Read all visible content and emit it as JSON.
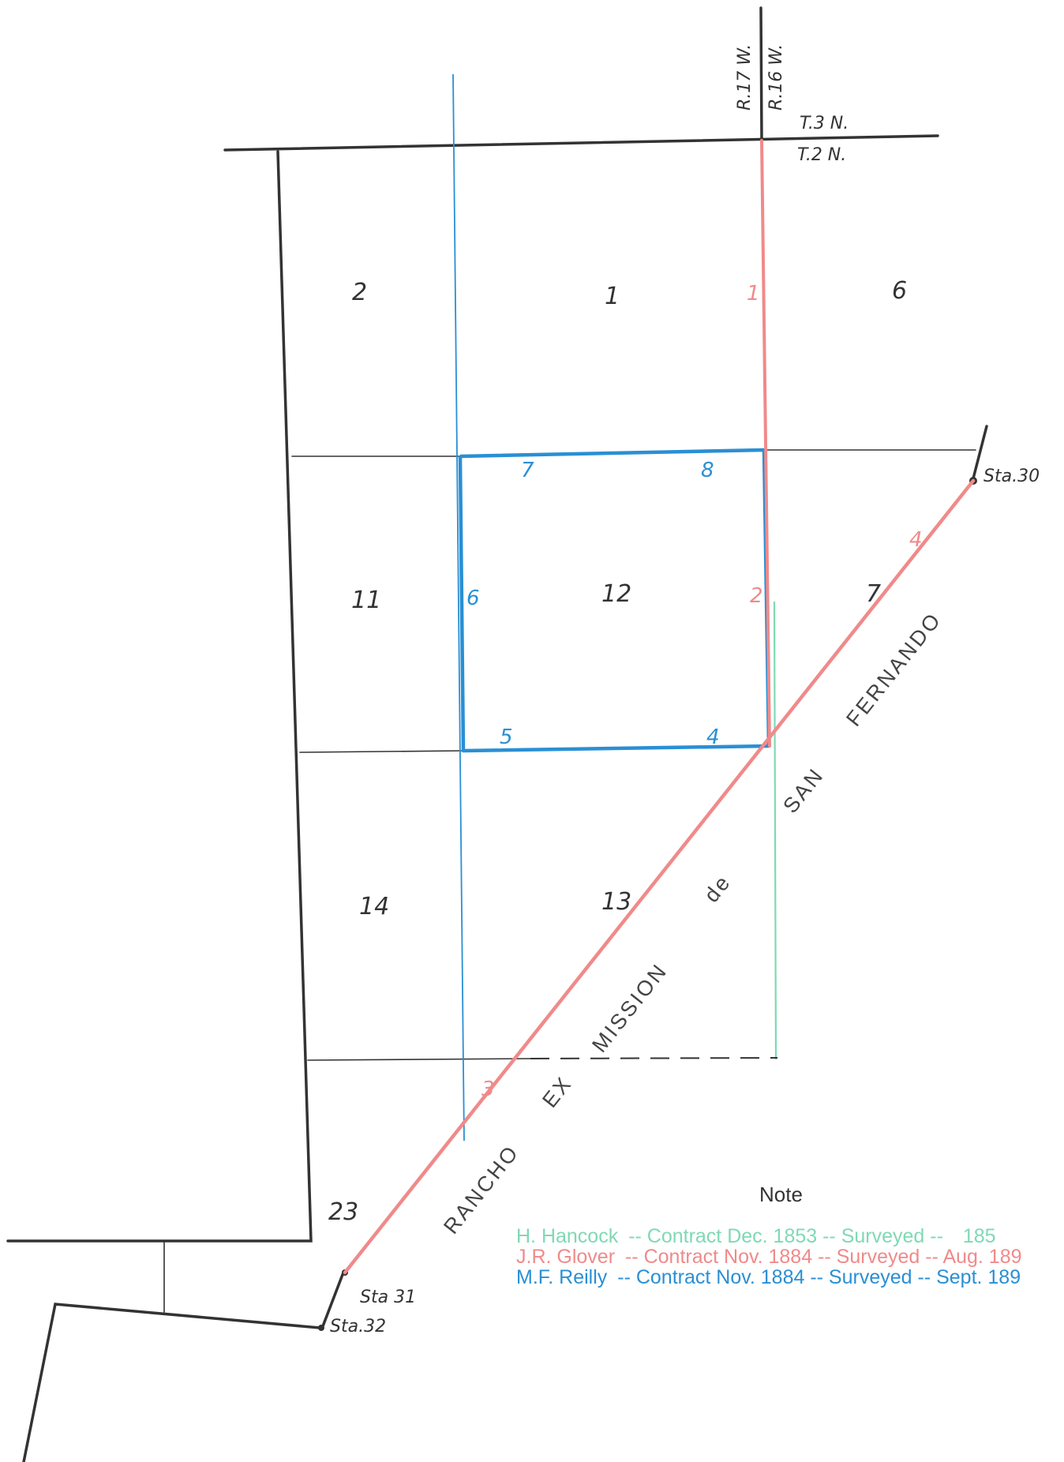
{
  "map": {
    "range_labels": {
      "west": "R.17 W.",
      "east": "R.16 W."
    },
    "township_labels": {
      "north": "T.3 N.",
      "south": "T.2 N."
    },
    "sections": {
      "s1": "1",
      "s2": "2",
      "s6": "6",
      "s7": "7",
      "s11": "11",
      "s12": "12",
      "s13": "13",
      "s14": "14",
      "s23": "23"
    },
    "blue_corners": {
      "c4": "4",
      "c5": "5",
      "c6": "6",
      "c7": "7",
      "c8": "8"
    },
    "red_corners": {
      "c1": "1",
      "c2": "2",
      "c3": "3",
      "c4": "4"
    },
    "stations": {
      "sta30": "Sta.30",
      "sta31": "Sta 31",
      "sta32": "Sta.32"
    },
    "rancho_words": {
      "w1": "RANCHO",
      "w2": "EX",
      "w3": "MISSION",
      "w4": "de",
      "w5": "SAN",
      "w6": "FERNANDO"
    },
    "colors": {
      "black": "#333333",
      "red": "#f08a8a",
      "blue": "#2a8fd4",
      "green": "#7fd9b4"
    }
  },
  "note": {
    "title": "Note",
    "lines": [
      {
        "surveyor": "H. Hancock",
        "contract": "-- Contract Dec. 1853 -- Surveyed --",
        "year": "185",
        "color": "#7fd9b4"
      },
      {
        "surveyor": "J.R. Glover",
        "contract": "-- Contract Nov. 1884 -- Surveyed -- Aug. 189",
        "year": "",
        "color": "#f08a8a"
      },
      {
        "surveyor": "M.F. Reilly",
        "contract": "-- Contract Nov. 1884 -- Surveyed -- Sept. 189",
        "year": "",
        "color": "#2a8fd4"
      }
    ]
  }
}
